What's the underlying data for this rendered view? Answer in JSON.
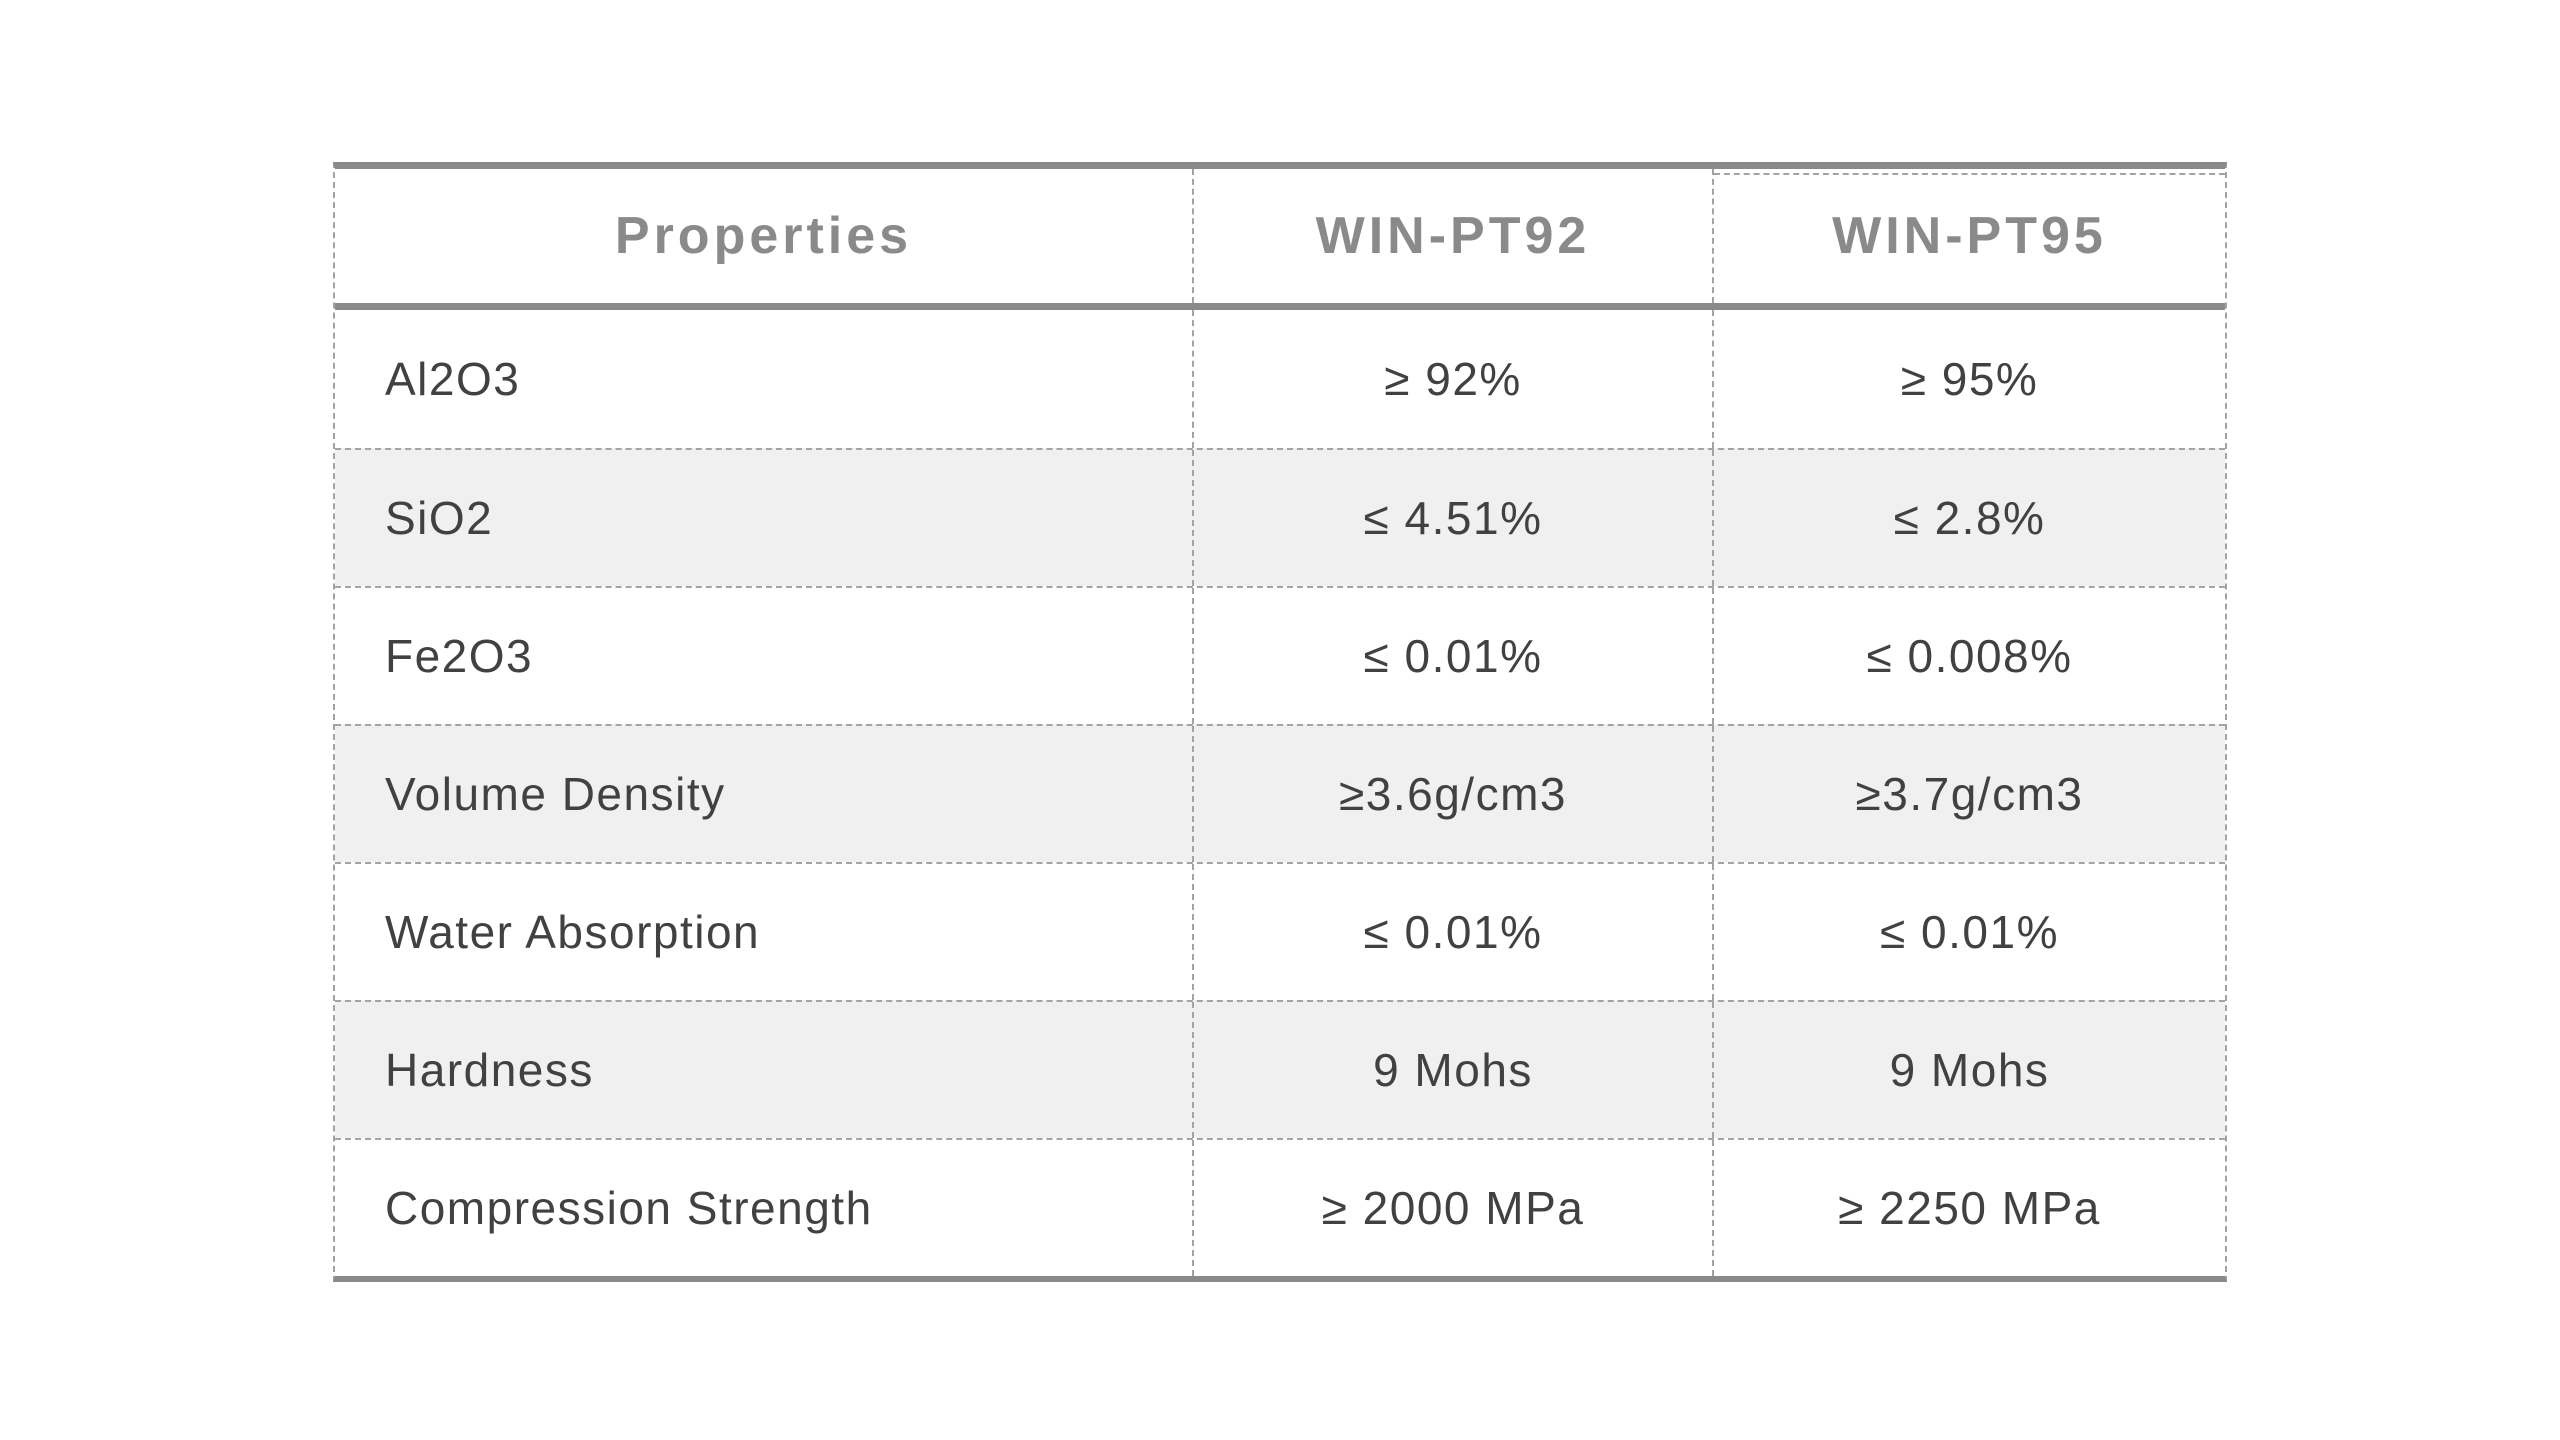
{
  "page": {
    "background": "#ffffff"
  },
  "table": {
    "columns": [
      "Properties",
      "WIN-PT92",
      "WIN-PT95"
    ],
    "rows": [
      {
        "property": "Al2O3",
        "pt92": "≥ 92%",
        "pt95": "≥ 95%"
      },
      {
        "property": "SiO2",
        "pt92": "≤ 4.51%",
        "pt95": "≤ 2.8%"
      },
      {
        "property": "Fe2O3",
        "pt92": "≤ 0.01%",
        "pt95": "≤ 0.008%"
      },
      {
        "property": "Volume Density",
        "pt92": "≥3.6g/cm3",
        "pt95": "≥3.7g/cm3"
      },
      {
        "property": "Water Absorption",
        "pt92": "≤ 0.01%",
        "pt95": "≤ 0.01%"
      },
      {
        "property": "Hardness",
        "pt92": "9 Mohs",
        "pt95": "9 Mohs"
      },
      {
        "property": "Compression Strength",
        "pt92": "≥ 2000 MPa",
        "pt95": "≥ 2250 MPa"
      }
    ],
    "colors": {
      "thick_border": "#8a8a8a",
      "dashed_border": "#a3a3a3",
      "header_text": "#8a8a8a",
      "body_text": "#414141",
      "alt_row_background": "#f0f0f0",
      "row_background": "#ffffff"
    }
  }
}
